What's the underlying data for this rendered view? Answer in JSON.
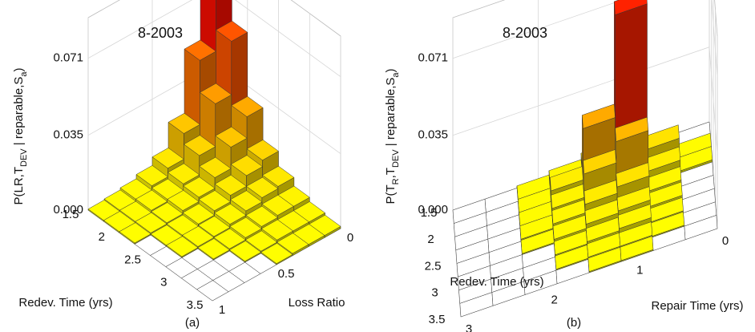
{
  "chart_data": [
    {
      "type": "bar3d",
      "title": "8-2003",
      "caption": "(a)",
      "zlabel": [
        {
          "text": "P(LR,T"
        },
        {
          "text": "DEV",
          "sub": true
        },
        {
          "text": " | reparable,S"
        },
        {
          "text": "a",
          "sub": true
        },
        {
          "text": ")"
        }
      ],
      "xlabel": "Loss Ratio",
      "ylabel": "Redev. Time (yrs)",
      "xbins": [
        0,
        0.125,
        0.25,
        0.375,
        0.5,
        0.625,
        0.75,
        0.875,
        1
      ],
      "ybins": [
        1.5,
        1.75,
        2,
        2.25,
        2.5,
        2.75,
        3,
        3.25,
        3.5
      ],
      "values": [
        [
          0.085,
          0.05,
          0.02,
          0.008,
          0.004,
          0.002,
          0.001,
          0.0005
        ],
        [
          0.06,
          0.035,
          0.015,
          0.006,
          0.003,
          0.002,
          0.001,
          0.0005
        ],
        [
          0.03,
          0.02,
          0.01,
          0.005,
          0.003,
          0.0015,
          0.001,
          0.0005
        ],
        [
          0.015,
          0.012,
          0.007,
          0.004,
          0.002,
          0.001,
          0.0005,
          0
        ],
        [
          0.008,
          0.007,
          0.005,
          0.003,
          0.0015,
          0.001,
          0.0005,
          0
        ],
        [
          0.004,
          0.004,
          0.003,
          0.002,
          0.001,
          0.0005,
          0,
          0
        ],
        [
          0.002,
          0.002,
          0.002,
          0.001,
          0.0005,
          0,
          0,
          0
        ],
        [
          0.001,
          0.001,
          0.001,
          0.0005,
          0,
          0,
          0,
          0
        ]
      ],
      "xlim": [
        0,
        1
      ],
      "ylim": [
        1.5,
        3.5
      ],
      "zlim": [
        0,
        0.09
      ],
      "xticks": [
        0,
        0.5,
        1
      ],
      "yticks": [
        1.5,
        2,
        2.5,
        3,
        3.5
      ],
      "zticks": [
        {
          "value": 0,
          "label": "0.000"
        },
        {
          "value": 0.035,
          "label": "0.035"
        },
        {
          "value": 0.071,
          "label": "0.071"
        }
      ],
      "colormap": [
        "#ffff00",
        "#ff0000"
      ],
      "grid": true
    },
    {
      "type": "bar3d",
      "title": "8-2003",
      "caption": "(b)",
      "zlabel": [
        {
          "text": "P(T"
        },
        {
          "text": "R",
          "sub": true
        },
        {
          "text": ",T"
        },
        {
          "text": "DEV",
          "sub": true
        },
        {
          "text": " | reparable,S"
        },
        {
          "text": "a",
          "sub": true
        },
        {
          "text": ")"
        }
      ],
      "xlabel": "Repair Time (yrs)",
      "ylabel": "Redev. Time (yrs)",
      "xbins": [
        0,
        0.375,
        0.75,
        1.125,
        1.5,
        1.875,
        2.25,
        2.625,
        3
      ],
      "ybins": [
        1.5,
        1.75,
        2,
        2.25,
        2.5,
        2.75,
        3,
        3.25,
        3.5
      ],
      "values": [
        [
          0,
          0.001,
          0.004,
          0.006,
          0.003,
          0.001,
          0,
          0
        ],
        [
          0.001,
          0.01,
          0.078,
          0.03,
          0.006,
          0.001,
          0,
          0
        ],
        [
          0.001,
          0.006,
          0.025,
          0.015,
          0.004,
          0.001,
          0,
          0
        ],
        [
          0,
          0.003,
          0.01,
          0.007,
          0.003,
          0.001,
          0,
          0
        ],
        [
          0,
          0.002,
          0.005,
          0.004,
          0.002,
          0.0005,
          0,
          0
        ],
        [
          0,
          0.001,
          0.003,
          0.002,
          0.001,
          0,
          0,
          0
        ],
        [
          0,
          0.0005,
          0.001,
          0.001,
          0.0005,
          0,
          0,
          0
        ],
        [
          0,
          0,
          0.0005,
          0.0005,
          0,
          0,
          0,
          0
        ]
      ],
      "xlim": [
        0,
        3
      ],
      "ylim": [
        1.5,
        3.5
      ],
      "zlim": [
        0,
        0.09
      ],
      "xticks": [
        0,
        1,
        2,
        3
      ],
      "yticks": [
        1.5,
        2,
        2.5,
        3,
        3.5
      ],
      "zticks": [
        {
          "value": 0,
          "label": "0.000"
        },
        {
          "value": 0.035,
          "label": "0.035"
        },
        {
          "value": 0.071,
          "label": "0.071"
        }
      ],
      "colormap": [
        "#ffff00",
        "#ff0000"
      ],
      "grid": true
    }
  ]
}
